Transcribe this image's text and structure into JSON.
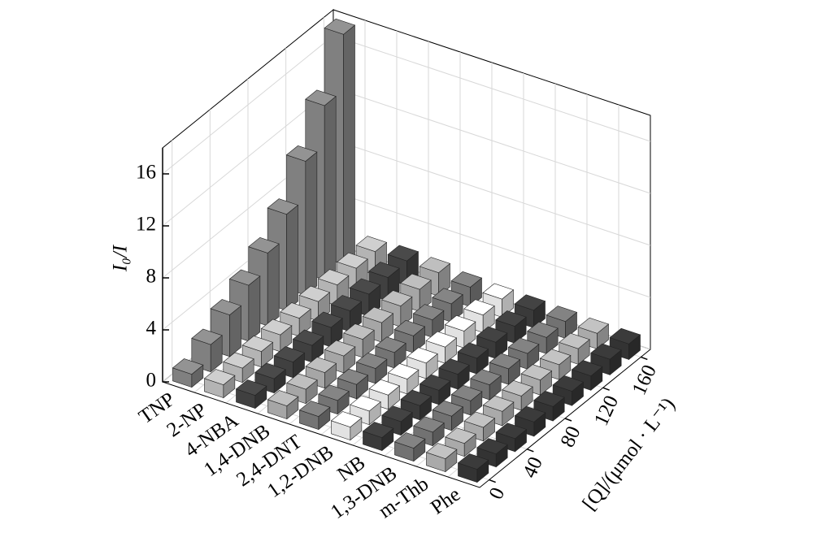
{
  "chart_data": {
    "type": "bar3d",
    "z_label": "I₀/I",
    "x_label": "[Q]/(μmol · L⁻¹)",
    "x": [
      0,
      20,
      40,
      60,
      80,
      100,
      120,
      140,
      160
    ],
    "xlim": [
      -10,
      170
    ],
    "xticks": [
      0,
      40,
      80,
      120,
      160
    ],
    "zlim": [
      0,
      18
    ],
    "zticks": [
      0,
      4,
      8,
      12,
      16
    ],
    "grid": true,
    "series": [
      {
        "name": "TNP",
        "color": "#808080",
        "values": [
          1.0,
          2.1,
          3.2,
          4.3,
          5.6,
          7.4,
          10.3,
          13.4,
          17.7
        ]
      },
      {
        "name": "2-NP",
        "color": "#b4b4b4",
        "values": [
          1.0,
          1.1,
          1.2,
          1.3,
          1.4,
          1.5,
          1.6,
          1.7,
          1.8
        ]
      },
      {
        "name": "4-NBA",
        "color": "#404040",
        "values": [
          1.0,
          1.1,
          1.2,
          1.3,
          1.5,
          1.6,
          1.7,
          1.8,
          1.9
        ]
      },
      {
        "name": "1,4-DNB",
        "color": "#a6a6a6",
        "values": [
          1.0,
          1.1,
          1.2,
          1.3,
          1.4,
          1.5,
          1.6,
          1.7,
          1.8
        ]
      },
      {
        "name": "2,4-DNT",
        "color": "#747474",
        "values": [
          1.0,
          1.05,
          1.1,
          1.15,
          1.2,
          1.3,
          1.35,
          1.4,
          1.5
        ]
      },
      {
        "name": "1,2-DNB",
        "color": "#e2e2e2",
        "values": [
          1.0,
          1.05,
          1.1,
          1.15,
          1.2,
          1.25,
          1.3,
          1.35,
          1.4
        ]
      },
      {
        "name": "NB",
        "color": "#3a3a3a",
        "values": [
          1.0,
          1.05,
          1.1,
          1.1,
          1.15,
          1.2,
          1.25,
          1.3,
          1.35
        ]
      },
      {
        "name": "1,3-DNB",
        "color": "#727272",
        "values": [
          1.0,
          1.05,
          1.1,
          1.1,
          1.15,
          1.2,
          1.2,
          1.25,
          1.3
        ]
      },
      {
        "name": "m-Thb",
        "color": "#aaaaaa",
        "values": [
          1.0,
          1.0,
          1.05,
          1.1,
          1.1,
          1.15,
          1.15,
          1.2,
          1.2
        ]
      },
      {
        "name": "Phe",
        "color": "#333333",
        "values": [
          1.0,
          1.0,
          1.0,
          1.1,
          1.1,
          1.1,
          1.1,
          1.2,
          1.2
        ]
      }
    ]
  }
}
